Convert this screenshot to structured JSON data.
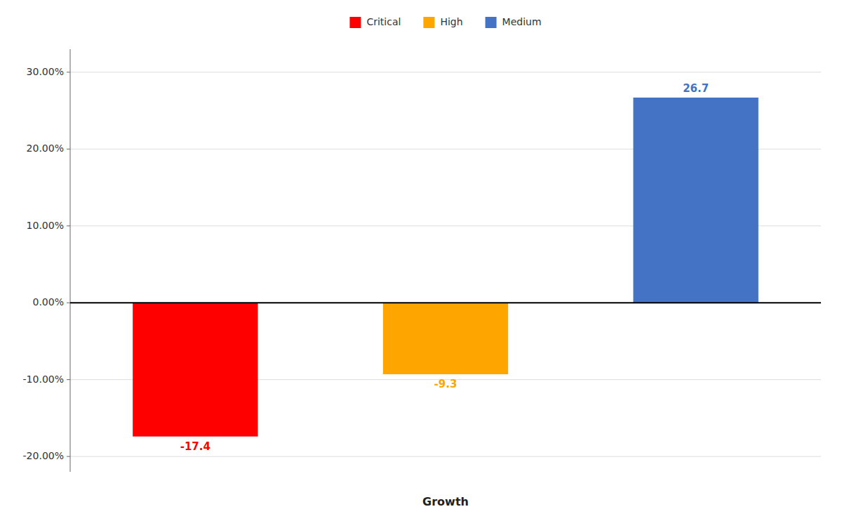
{
  "chart_data": {
    "type": "bar",
    "categories": [
      "Critical",
      "High",
      "Medium"
    ],
    "values": [
      -17.4,
      -9.3,
      26.7
    ],
    "colors": [
      "#FF0000",
      "#FFA500",
      "#4472C4"
    ],
    "xlabel": "Growth",
    "ylim": [
      -22,
      33
    ],
    "yticks": [
      {
        "value": -20,
        "label": "-20.00%"
      },
      {
        "value": -10,
        "label": "-10.00%"
      },
      {
        "value": 0,
        "label": "0.00%"
      },
      {
        "value": 10,
        "label": "10.00%"
      },
      {
        "value": 20,
        "label": "20.00%"
      },
      {
        "value": 30,
        "label": "30.00%"
      }
    ],
    "grid": true,
    "legend": "top",
    "data_labels": true,
    "tick_labels": "y"
  }
}
